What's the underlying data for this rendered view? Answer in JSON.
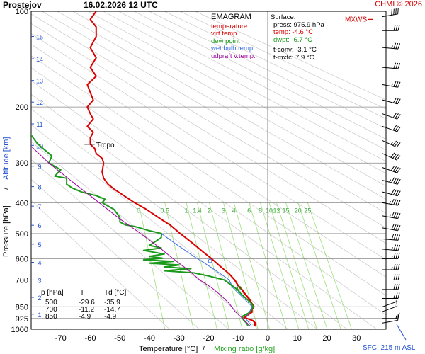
{
  "station": "Prostejov",
  "datetime": "16.02.2026 12 UTC",
  "copyright": "CHMI © 2026",
  "legend": {
    "title": "EMAGRAM",
    "items": [
      {
        "label": "temperature",
        "color": "#dd0000"
      },
      {
        "label": "virt.temp.",
        "color": "#dd0000"
      },
      {
        "label": "dew point",
        "color": "#1a9a1a"
      },
      {
        "label": "wet bulb temp.",
        "color": "#3c6fe0"
      },
      {
        "label": "udpraft v.temp.",
        "color": "#a000a0"
      }
    ]
  },
  "surface": {
    "title": "Surface:",
    "press": "press: 975.9 hPa",
    "temp": "temp: -4.6 °C",
    "dwpt": "dwpt: -6.7 °C",
    "tconv": "t-conv: -3.1 °C",
    "tmxfc": "t-mxfc: 7.9 °C"
  },
  "mxws_label": "MXWS",
  "tropo_label": "Tropo",
  "sfc_label": "SFC: 215 m ASL",
  "table": {
    "headers": [
      "p [hPa]",
      "T",
      "Td [°C]"
    ],
    "rows": [
      [
        "500",
        "-29.6",
        "-35.9"
      ],
      [
        "700",
        "-11.2",
        "-14.7"
      ],
      [
        "850",
        "-4.9",
        "-4.9"
      ]
    ]
  },
  "mixing_ratio_labels": [
    "0",
    "0.5",
    "1",
    "1.4",
    "2",
    "3",
    "4",
    "6",
    "8",
    "10",
    "12",
    "15",
    "20",
    "25"
  ],
  "altitude_labels": [
    "1",
    "2",
    "3",
    "4",
    "5",
    "6",
    "7",
    "8",
    "9",
    "10",
    "11",
    "12",
    "13",
    "14",
    "15"
  ],
  "chart_data": {
    "type": "line",
    "title": "",
    "xlabel": "Temperature [°C]",
    "xlabel2": "Mixing ratio [g/kg]",
    "ylabel": "Pressure [hPa]",
    "ylabel2": "Altitude [km]",
    "xlim": [
      -80,
      40
    ],
    "ylim": [
      1000,
      100
    ],
    "y_scale": "log",
    "x_ticks": [
      -70,
      -60,
      -50,
      -40,
      -30,
      -20,
      -10,
      0,
      10,
      20,
      30
    ],
    "y_ticks": [
      100,
      200,
      300,
      400,
      500,
      600,
      700,
      850,
      925,
      1000
    ],
    "series": [
      {
        "name": "temperature",
        "color": "#dd0000",
        "points": [
          [
            -4.6,
            976
          ],
          [
            -4.2,
            960
          ],
          [
            -5,
            940
          ],
          [
            -7,
            925
          ],
          [
            -8,
            920
          ],
          [
            -7,
            905
          ],
          [
            -5.5,
            885
          ],
          [
            -5.5,
            868
          ],
          [
            -4.9,
            850
          ],
          [
            -5.5,
            830
          ],
          [
            -6.5,
            800
          ],
          [
            -8,
            770
          ],
          [
            -9,
            745
          ],
          [
            -9.6,
            740
          ],
          [
            -11.2,
            700
          ],
          [
            -13,
            670
          ],
          [
            -16,
            635
          ],
          [
            -19,
            600
          ],
          [
            -22,
            570
          ],
          [
            -25,
            540
          ],
          [
            -29.6,
            500
          ],
          [
            -33,
            470
          ],
          [
            -37,
            445
          ],
          [
            -41,
            420
          ],
          [
            -45,
            400
          ],
          [
            -49,
            378
          ],
          [
            -52,
            362
          ],
          [
            -54,
            350
          ],
          [
            -55.5,
            335
          ],
          [
            -56,
            320
          ],
          [
            -55.5,
            300
          ],
          [
            -56,
            290
          ],
          [
            -58,
            280
          ],
          [
            -58.5,
            270
          ],
          [
            -60,
            262
          ],
          [
            -60,
            250
          ],
          [
            -59,
            240
          ],
          [
            -61,
            230
          ],
          [
            -59,
            218
          ],
          [
            -60,
            210
          ],
          [
            -61,
            200
          ],
          [
            -59,
            190
          ],
          [
            -60,
            180
          ],
          [
            -61,
            170
          ],
          [
            -58,
            160
          ],
          [
            -60,
            150
          ],
          [
            -58,
            140
          ],
          [
            -60,
            130
          ],
          [
            -58,
            120
          ],
          [
            -58,
            112
          ],
          [
            -60,
            106
          ],
          [
            -58,
            100
          ]
        ]
      },
      {
        "name": "virt.temp.",
        "color": "#dd0000",
        "points": [
          [
            -4.3,
            976
          ],
          [
            -3.9,
            960
          ],
          [
            -4.7,
            940
          ],
          [
            -6.7,
            925
          ],
          [
            -7.7,
            920
          ],
          [
            -6.7,
            905
          ],
          [
            -5.2,
            885
          ],
          [
            -5.2,
            868
          ],
          [
            -4.5,
            850
          ],
          [
            -5.2,
            830
          ],
          [
            -6.2,
            800
          ],
          [
            -7.7,
            770
          ],
          [
            -8.8,
            745
          ],
          [
            -9.4,
            740
          ],
          [
            -11,
            700
          ],
          [
            -12.9,
            670
          ],
          [
            -15.9,
            635
          ],
          [
            -18.9,
            600
          ],
          [
            -21.9,
            570
          ],
          [
            -24.9,
            540
          ],
          [
            -29.5,
            500
          ]
        ]
      },
      {
        "name": "dew point",
        "color": "#1a9a1a",
        "points": [
          [
            -6.7,
            976
          ],
          [
            -7,
            960
          ],
          [
            -8,
            940
          ],
          [
            -8.5,
            925
          ],
          [
            -8.5,
            910
          ],
          [
            -6.5,
            890
          ],
          [
            -5.5,
            868
          ],
          [
            -4.9,
            850
          ],
          [
            -5.5,
            830
          ],
          [
            -7,
            805
          ],
          [
            -9,
            775
          ],
          [
            -10,
            755
          ],
          [
            -11,
            742
          ],
          [
            -14.7,
            700
          ],
          [
            -20,
            680
          ],
          [
            -25,
            665
          ],
          [
            -35,
            655
          ],
          [
            -26,
            645
          ],
          [
            -35,
            637
          ],
          [
            -30,
            628
          ],
          [
            -40,
            620
          ],
          [
            -32,
            612
          ],
          [
            -42,
            605
          ],
          [
            -35.5,
            598
          ],
          [
            -40,
            590
          ],
          [
            -35,
            580
          ],
          [
            -42,
            565
          ],
          [
            -36,
            555
          ],
          [
            -40,
            545
          ],
          [
            -38,
            530
          ],
          [
            -36,
            515
          ],
          [
            -35.9,
            500
          ],
          [
            -40,
            490
          ],
          [
            -45,
            475
          ],
          [
            -48,
            470
          ],
          [
            -50,
            460
          ],
          [
            -50,
            445
          ],
          [
            -51,
            432
          ],
          [
            -52,
            420
          ],
          [
            -54,
            410
          ],
          [
            -56,
            400
          ],
          [
            -55,
            390
          ],
          [
            -58,
            380
          ],
          [
            -63,
            370
          ],
          [
            -66,
            360
          ],
          [
            -68,
            350
          ],
          [
            -68,
            345
          ],
          [
            -68,
            335
          ],
          [
            -72,
            330
          ],
          [
            -70,
            315
          ],
          [
            -74,
            300
          ],
          [
            -73,
            285
          ],
          [
            -76,
            270
          ],
          [
            -78,
            260
          ],
          [
            -80,
            245
          ],
          [
            -84,
            235
          ]
        ]
      },
      {
        "name": "wet bulb temp.",
        "color": "#3c6fe0",
        "points": [
          [
            -5.5,
            976
          ],
          [
            -7.5,
            925
          ],
          [
            -5.2,
            850
          ],
          [
            -11.8,
            740
          ],
          [
            -13,
            700
          ],
          [
            -19,
            640
          ],
          [
            -25,
            590
          ],
          [
            -31,
            540
          ],
          [
            -36,
            500
          ]
        ]
      },
      {
        "name": "udpraft v.temp.",
        "color": "#a000a0",
        "points": [
          [
            -6,
            976
          ],
          [
            -8.5,
            925
          ],
          [
            -11,
            880
          ],
          [
            -13,
            830
          ],
          [
            -16,
            780
          ],
          [
            -19,
            740
          ],
          [
            -23,
            700
          ],
          [
            -27,
            650
          ],
          [
            -32,
            600
          ],
          [
            -37,
            550
          ],
          [
            -43,
            500
          ],
          [
            -50,
            450
          ],
          [
            -57,
            400
          ],
          [
            -65,
            350
          ],
          [
            -74,
            300
          ],
          [
            -84,
            245
          ]
        ]
      }
    ]
  }
}
